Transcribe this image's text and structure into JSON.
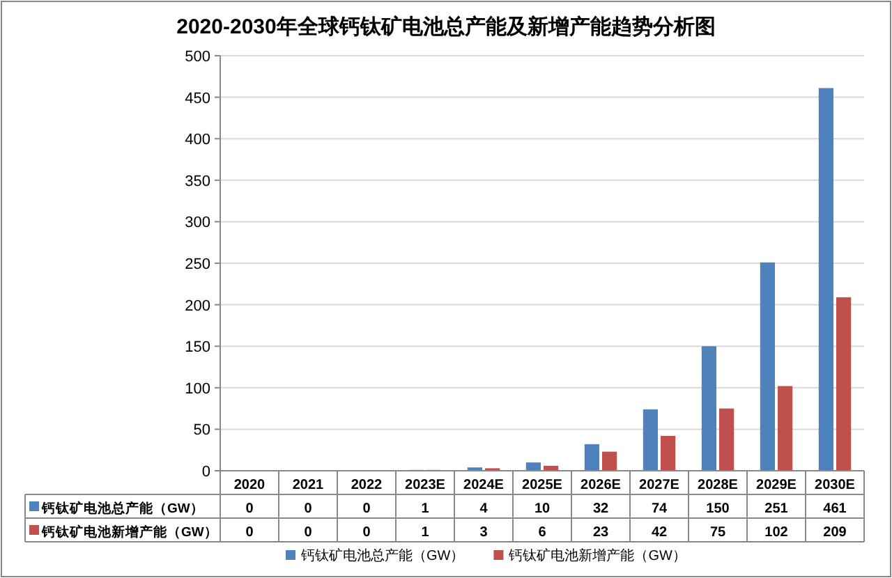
{
  "chart_data": {
    "type": "bar",
    "title": "2020-2030年全球钙钛矿电池总产能及新增产能趋势分析图",
    "categories": [
      "2020",
      "2021",
      "2022",
      "2023E",
      "2024E",
      "2025E",
      "2026E",
      "2027E",
      "2028E",
      "2029E",
      "2030E"
    ],
    "series": [
      {
        "name": "钙钛矿电池总产能（GW）",
        "color": "#4f81bd",
        "values": [
          0,
          0,
          0,
          1,
          4,
          10,
          32,
          74,
          150,
          251,
          461
        ]
      },
      {
        "name": "钙钛矿电池新增产能（GW）",
        "color": "#c0504d",
        "values": [
          0,
          0,
          0,
          1,
          3,
          6,
          23,
          42,
          75,
          102,
          209
        ]
      }
    ],
    "ylim": [
      0,
      500
    ],
    "yticks": [
      0,
      50,
      100,
      150,
      200,
      250,
      300,
      350,
      400,
      450,
      500
    ],
    "grid": "y",
    "data_labels": true,
    "legend": "bottom"
  }
}
